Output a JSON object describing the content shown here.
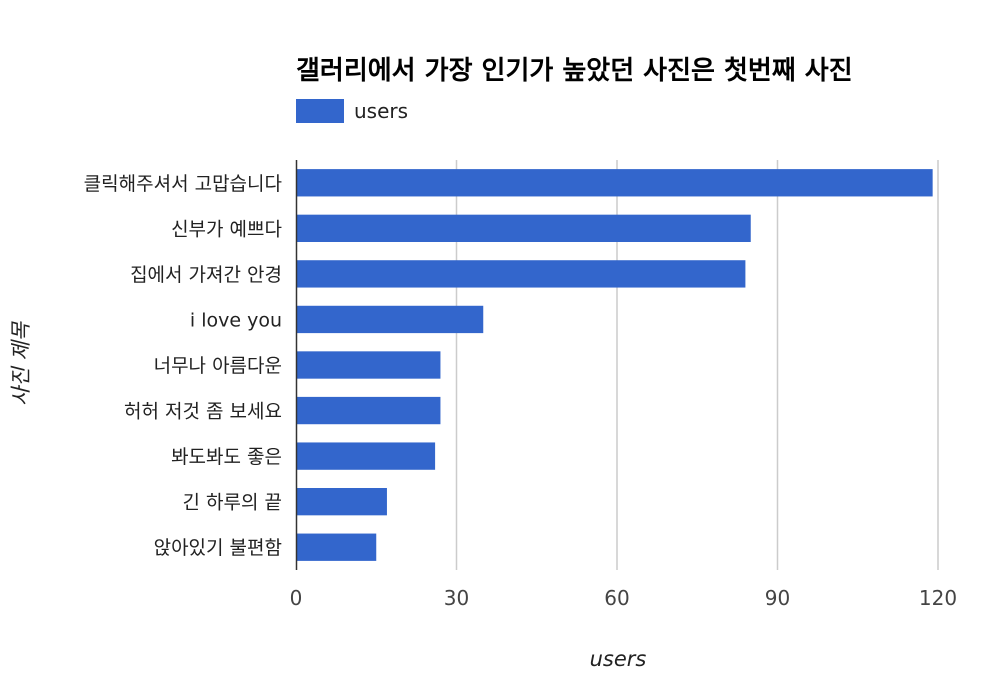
{
  "chart_data": {
    "type": "bar",
    "orientation": "horizontal",
    "title": "갤러리에서 가장 인기가 높았던 사진은 첫번째 사진",
    "xlabel": "users",
    "ylabel": "사진 제목",
    "xlim": [
      0,
      120
    ],
    "xticks": [
      "0",
      "30",
      "60",
      "90",
      "120"
    ],
    "tick_values": [
      0,
      30,
      60,
      90,
      120
    ],
    "grid": true,
    "legend_position": "top-left",
    "categories": [
      "클릭해주셔서 고맙습니다",
      "신부가 예쁘다",
      "집에서 가져간 안경",
      "i love you",
      "너무나 아름다운",
      "허허 저것 좀 보세요",
      "봐도봐도 좋은",
      "긴 하루의 끝",
      "앉아있기 불편함"
    ],
    "series": [
      {
        "name": "users",
        "color": "#3366cc",
        "values": [
          119,
          85,
          84,
          35,
          27,
          27,
          26,
          17,
          15
        ]
      }
    ]
  }
}
